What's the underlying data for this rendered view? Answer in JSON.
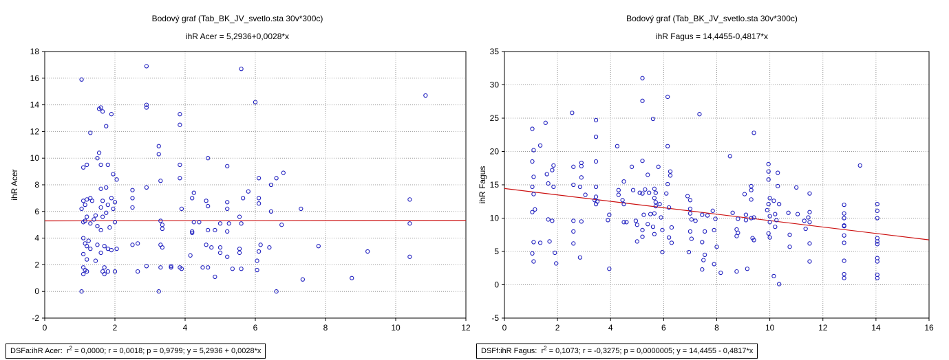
{
  "chart_data": [
    {
      "type": "scatter",
      "title": "Bodový graf (Tab_BK_JV_svetlo.sta 30v*300c)",
      "subtitle": "ihR Acer = 5,2936+0,0028*x",
      "xlabel": "",
      "ylabel": "ihR Acer",
      "xlim": [
        0,
        12
      ],
      "ylim": [
        -2,
        18
      ],
      "xticks": [
        "0",
        "2",
        "4",
        "6",
        "8",
        "10",
        "12"
      ],
      "yticks": [
        "-2",
        "0",
        "2",
        "4",
        "6",
        "8",
        "10",
        "12",
        "14",
        "16",
        "18"
      ],
      "grid": true,
      "regression": {
        "intercept": 5.2936,
        "slope": 0.0028
      },
      "stats": {
        "label": "DSFa:ihR Acer:",
        "r2_label": "r",
        "r2_value": " = 0,0000;  r = 0,0018;  p = 0,9799;  y = 5,2936 + 0,0028*x"
      },
      "points": [
        [
          1.05,
          15.9
        ],
        [
          1.1,
          9.3
        ],
        [
          1.2,
          9.5
        ],
        [
          1.1,
          6.8
        ],
        [
          1.15,
          6.5
        ],
        [
          1.2,
          6.9
        ],
        [
          1.3,
          7.0
        ],
        [
          1.05,
          6.2
        ],
        [
          1.1,
          5.2
        ],
        [
          1.15,
          5.3
        ],
        [
          1.2,
          5.6
        ],
        [
          1.3,
          5.1
        ],
        [
          1.1,
          4.0
        ],
        [
          1.15,
          3.6
        ],
        [
          1.2,
          3.4
        ],
        [
          1.25,
          3.8
        ],
        [
          1.3,
          3.2
        ],
        [
          1.1,
          2.8
        ],
        [
          1.2,
          2.4
        ],
        [
          1.1,
          1.8
        ],
        [
          1.15,
          1.6
        ],
        [
          1.2,
          1.5
        ],
        [
          1.1,
          1.3
        ],
        [
          1.05,
          0.0
        ],
        [
          1.3,
          11.9
        ],
        [
          1.35,
          6.8
        ],
        [
          1.4,
          5.4
        ],
        [
          1.45,
          5.7
        ],
        [
          1.5,
          4.9
        ],
        [
          1.5,
          3.5
        ],
        [
          1.45,
          2.3
        ],
        [
          1.5,
          10.0
        ],
        [
          1.55,
          10.4
        ],
        [
          1.55,
          13.7
        ],
        [
          1.6,
          13.8
        ],
        [
          1.65,
          13.5
        ],
        [
          1.6,
          9.5
        ],
        [
          1.6,
          7.7
        ],
        [
          1.65,
          6.8
        ],
        [
          1.6,
          6.3
        ],
        [
          1.65,
          5.6
        ],
        [
          1.6,
          4.6
        ],
        [
          1.7,
          3.4
        ],
        [
          1.6,
          2.9
        ],
        [
          1.7,
          1.8
        ],
        [
          1.65,
          1.5
        ],
        [
          1.7,
          1.3
        ],
        [
          1.75,
          12.4
        ],
        [
          1.8,
          9.5
        ],
        [
          1.75,
          7.8
        ],
        [
          1.8,
          6.5
        ],
        [
          1.75,
          5.9
        ],
        [
          1.85,
          4.8
        ],
        [
          1.8,
          3.2
        ],
        [
          1.8,
          1.5
        ],
        [
          1.9,
          13.3
        ],
        [
          1.95,
          8.8
        ],
        [
          1.9,
          7.0
        ],
        [
          2.0,
          6.7
        ],
        [
          1.95,
          6.2
        ],
        [
          2.0,
          5.2
        ],
        [
          1.9,
          3.1
        ],
        [
          2.0,
          1.5
        ],
        [
          2.05,
          8.4
        ],
        [
          2.05,
          3.2
        ],
        [
          2.5,
          7.6
        ],
        [
          2.5,
          7.0
        ],
        [
          2.5,
          6.3
        ],
        [
          2.5,
          3.5
        ],
        [
          2.65,
          3.6
        ],
        [
          2.65,
          1.5
        ],
        [
          2.9,
          16.9
        ],
        [
          2.9,
          14.0
        ],
        [
          2.9,
          13.8
        ],
        [
          2.9,
          7.8
        ],
        [
          2.9,
          1.9
        ],
        [
          3.25,
          10.9
        ],
        [
          3.25,
          10.3
        ],
        [
          3.3,
          8.3
        ],
        [
          3.3,
          5.3
        ],
        [
          3.35,
          5.0
        ],
        [
          3.35,
          4.7
        ],
        [
          3.3,
          3.5
        ],
        [
          3.35,
          3.3
        ],
        [
          3.3,
          1.8
        ],
        [
          3.25,
          0.0
        ],
        [
          3.6,
          1.8
        ],
        [
          3.6,
          1.9
        ],
        [
          3.85,
          13.3
        ],
        [
          3.85,
          12.5
        ],
        [
          3.85,
          9.5
        ],
        [
          3.85,
          8.5
        ],
        [
          3.9,
          6.2
        ],
        [
          3.85,
          1.8
        ],
        [
          3.9,
          1.7
        ],
        [
          4.25,
          7.4
        ],
        [
          4.2,
          7.0
        ],
        [
          4.25,
          5.2
        ],
        [
          4.2,
          4.5
        ],
        [
          4.2,
          4.4
        ],
        [
          4.15,
          2.7
        ],
        [
          4.4,
          5.2
        ],
        [
          4.5,
          1.8
        ],
        [
          4.65,
          10.0
        ],
        [
          4.6,
          6.8
        ],
        [
          4.65,
          6.4
        ],
        [
          4.65,
          4.6
        ],
        [
          4.6,
          3.5
        ],
        [
          4.65,
          1.8
        ],
        [
          4.75,
          3.3
        ],
        [
          4.85,
          4.6
        ],
        [
          4.85,
          1.1
        ],
        [
          5.0,
          5.1
        ],
        [
          5.0,
          3.3
        ],
        [
          5.0,
          2.9
        ],
        [
          5.2,
          9.4
        ],
        [
          5.2,
          6.7
        ],
        [
          5.2,
          6.2
        ],
        [
          5.25,
          5.1
        ],
        [
          5.2,
          4.5
        ],
        [
          5.2,
          2.6
        ],
        [
          5.35,
          1.7
        ],
        [
          5.6,
          16.7
        ],
        [
          5.55,
          5.6
        ],
        [
          5.6,
          5.1
        ],
        [
          5.55,
          3.2
        ],
        [
          5.55,
          2.9
        ],
        [
          5.6,
          1.7
        ],
        [
          5.8,
          7.5
        ],
        [
          5.65,
          7.0
        ],
        [
          6.0,
          14.2
        ],
        [
          6.1,
          8.5
        ],
        [
          6.1,
          7.0
        ],
        [
          6.1,
          6.6
        ],
        [
          6.1,
          3.0
        ],
        [
          6.05,
          2.3
        ],
        [
          6.05,
          1.6
        ],
        [
          6.15,
          3.5
        ],
        [
          6.45,
          8.0
        ],
        [
          6.45,
          6.0
        ],
        [
          6.4,
          3.3
        ],
        [
          6.6,
          8.5
        ],
        [
          6.8,
          8.9
        ],
        [
          6.75,
          5.0
        ],
        [
          6.6,
          0.0
        ],
        [
          7.3,
          6.2
        ],
        [
          7.35,
          0.9
        ],
        [
          7.8,
          3.4
        ],
        [
          8.75,
          1.0
        ],
        [
          9.2,
          3.0
        ],
        [
          10.4,
          6.9
        ],
        [
          10.4,
          5.1
        ],
        [
          10.4,
          2.6
        ],
        [
          10.85,
          14.7
        ]
      ]
    },
    {
      "type": "scatter",
      "title": "Bodový graf (Tab_BK_JV_svetlo.sta 30v*300c)",
      "subtitle": "ihR Fagus = 14,4455-0,4817*x",
      "xlabel": "",
      "ylabel": "ihR Fagus",
      "xlim": [
        0,
        16
      ],
      "ylim": [
        -5,
        35
      ],
      "xticks": [
        "0",
        "2",
        "4",
        "6",
        "8",
        "10",
        "12",
        "14",
        "16"
      ],
      "yticks": [
        "-5",
        "0",
        "5",
        "10",
        "15",
        "20",
        "25",
        "30",
        "35"
      ],
      "grid": true,
      "regression": {
        "intercept": 14.4455,
        "slope": -0.4817
      },
      "stats": {
        "label": "DSFf:ihR Fagus:",
        "r2_label": "r",
        "r2_value": " = 0,1073;  r = -0,3275;  p = 0,0000005;  y = 14,4455 - 0,4817*x"
      },
      "points": [
        [
          1.05,
          23.4
        ],
        [
          1.1,
          20.2
        ],
        [
          1.05,
          18.5
        ],
        [
          1.1,
          16.2
        ],
        [
          1.05,
          14.7
        ],
        [
          1.1,
          13.6
        ],
        [
          1.15,
          11.3
        ],
        [
          1.05,
          10.9
        ],
        [
          1.1,
          6.4
        ],
        [
          1.05,
          4.7
        ],
        [
          1.1,
          3.5
        ],
        [
          1.35,
          20.9
        ],
        [
          1.35,
          6.3
        ],
        [
          1.55,
          24.3
        ],
        [
          1.6,
          16.6
        ],
        [
          1.65,
          15.2
        ],
        [
          1.65,
          9.8
        ],
        [
          1.7,
          6.5
        ],
        [
          1.85,
          17.9
        ],
        [
          1.8,
          17.2
        ],
        [
          1.85,
          14.7
        ],
        [
          1.8,
          9.6
        ],
        [
          1.9,
          4.8
        ],
        [
          1.95,
          3.2
        ],
        [
          2.55,
          25.8
        ],
        [
          2.6,
          17.7
        ],
        [
          2.6,
          15.0
        ],
        [
          2.6,
          9.6
        ],
        [
          2.6,
          8.0
        ],
        [
          2.6,
          6.2
        ],
        [
          2.9,
          18.3
        ],
        [
          2.9,
          17.8
        ],
        [
          2.9,
          16.1
        ],
        [
          2.85,
          14.7
        ],
        [
          2.9,
          9.5
        ],
        [
          2.85,
          4.1
        ],
        [
          3.05,
          13.5
        ],
        [
          3.45,
          24.7
        ],
        [
          3.45,
          22.2
        ],
        [
          3.45,
          18.5
        ],
        [
          3.45,
          14.7
        ],
        [
          3.45,
          13.2
        ],
        [
          3.4,
          12.7
        ],
        [
          3.5,
          12.5
        ],
        [
          3.45,
          12.1
        ],
        [
          3.95,
          10.5
        ],
        [
          3.9,
          9.7
        ],
        [
          3.95,
          2.4
        ],
        [
          4.25,
          20.8
        ],
        [
          4.3,
          14.2
        ],
        [
          4.3,
          13.5
        ],
        [
          4.5,
          15.5
        ],
        [
          4.45,
          12.7
        ],
        [
          4.5,
          12.1
        ],
        [
          4.6,
          9.4
        ],
        [
          4.5,
          9.4
        ],
        [
          4.8,
          17.7
        ],
        [
          4.85,
          14.2
        ],
        [
          4.95,
          9.6
        ],
        [
          5.0,
          9.0
        ],
        [
          5.0,
          6.5
        ],
        [
          5.1,
          13.8
        ],
        [
          5.2,
          31.0
        ],
        [
          5.2,
          27.6
        ],
        [
          5.2,
          18.6
        ],
        [
          5.3,
          14.3
        ],
        [
          5.2,
          13.7
        ],
        [
          5.25,
          10.5
        ],
        [
          5.2,
          8.2
        ],
        [
          5.2,
          7.2
        ],
        [
          5.4,
          16.5
        ],
        [
          5.45,
          13.8
        ],
        [
          5.5,
          10.6
        ],
        [
          5.4,
          9.1
        ],
        [
          5.6,
          24.9
        ],
        [
          5.65,
          14.4
        ],
        [
          5.7,
          13.8
        ],
        [
          5.65,
          13.0
        ],
        [
          5.7,
          12.4
        ],
        [
          5.7,
          11.8
        ],
        [
          5.65,
          10.7
        ],
        [
          5.6,
          8.7
        ],
        [
          5.65,
          7.6
        ],
        [
          5.8,
          17.7
        ],
        [
          5.85,
          12.1
        ],
        [
          5.9,
          10.1
        ],
        [
          5.95,
          8.2
        ],
        [
          5.95,
          4.9
        ],
        [
          6.15,
          28.2
        ],
        [
          6.15,
          20.8
        ],
        [
          6.25,
          17.0
        ],
        [
          6.25,
          16.4
        ],
        [
          6.15,
          15.1
        ],
        [
          6.1,
          13.7
        ],
        [
          6.2,
          11.6
        ],
        [
          6.3,
          8.6
        ],
        [
          6.2,
          7.1
        ],
        [
          6.3,
          6.3
        ],
        [
          6.9,
          13.3
        ],
        [
          7.0,
          12.7
        ],
        [
          7.0,
          11.4
        ],
        [
          7.0,
          10.7
        ],
        [
          7.05,
          9.8
        ],
        [
          7.0,
          8.0
        ],
        [
          7.05,
          6.9
        ],
        [
          6.95,
          4.9
        ],
        [
          7.2,
          9.6
        ],
        [
          7.35,
          25.6
        ],
        [
          7.45,
          10.5
        ],
        [
          7.55,
          8.0
        ],
        [
          7.45,
          6.4
        ],
        [
          7.55,
          4.5
        ],
        [
          7.5,
          3.7
        ],
        [
          7.45,
          2.3
        ],
        [
          7.65,
          10.4
        ],
        [
          7.85,
          11.1
        ],
        [
          7.95,
          9.9
        ],
        [
          7.9,
          8.2
        ],
        [
          8.0,
          5.7
        ],
        [
          7.9,
          3.1
        ],
        [
          8.15,
          1.8
        ],
        [
          8.5,
          19.3
        ],
        [
          8.6,
          10.8
        ],
        [
          8.8,
          9.9
        ],
        [
          8.75,
          8.3
        ],
        [
          8.8,
          7.8
        ],
        [
          8.75,
          7.3
        ],
        [
          8.75,
          2.0
        ],
        [
          9.05,
          13.6
        ],
        [
          9.1,
          10.5
        ],
        [
          9.1,
          9.7
        ],
        [
          9.15,
          2.4
        ],
        [
          9.3,
          14.8
        ],
        [
          9.3,
          14.2
        ],
        [
          9.3,
          12.8
        ],
        [
          9.3,
          10.0
        ],
        [
          9.4,
          22.8
        ],
        [
          9.4,
          10.1
        ],
        [
          9.35,
          7.0
        ],
        [
          9.4,
          6.7
        ],
        [
          9.95,
          18.1
        ],
        [
          9.95,
          17.0
        ],
        [
          9.95,
          15.8
        ],
        [
          10.0,
          13.0
        ],
        [
          9.95,
          12.1
        ],
        [
          9.9,
          11.2
        ],
        [
          10.0,
          10.3
        ],
        [
          10.0,
          9.4
        ],
        [
          9.95,
          7.7
        ],
        [
          10.0,
          7.1
        ],
        [
          10.15,
          12.6
        ],
        [
          10.2,
          10.6
        ],
        [
          10.25,
          9.7
        ],
        [
          10.2,
          8.7
        ],
        [
          10.3,
          16.8
        ],
        [
          10.3,
          14.8
        ],
        [
          10.35,
          12.1
        ],
        [
          10.15,
          1.3
        ],
        [
          10.35,
          0.1
        ],
        [
          10.7,
          10.8
        ],
        [
          10.75,
          7.5
        ],
        [
          10.75,
          5.7
        ],
        [
          11.0,
          14.6
        ],
        [
          11.05,
          10.6
        ],
        [
          11.3,
          9.6
        ],
        [
          11.35,
          8.4
        ],
        [
          11.5,
          13.7
        ],
        [
          11.5,
          10.9
        ],
        [
          11.45,
          10.1
        ],
        [
          11.5,
          9.4
        ],
        [
          11.5,
          6.2
        ],
        [
          11.5,
          3.5
        ],
        [
          12.8,
          12.0
        ],
        [
          12.8,
          10.7
        ],
        [
          12.8,
          10.0
        ],
        [
          12.8,
          8.9
        ],
        [
          12.8,
          8.8
        ],
        [
          12.8,
          7.4
        ],
        [
          12.8,
          6.3
        ],
        [
          12.8,
          3.6
        ],
        [
          12.8,
          1.6
        ],
        [
          12.8,
          1.0
        ],
        [
          13.4,
          17.9
        ],
        [
          14.05,
          12.1
        ],
        [
          14.05,
          11.1
        ],
        [
          14.05,
          10.0
        ],
        [
          14.05,
          7.0
        ],
        [
          14.05,
          6.5
        ],
        [
          14.05,
          6.1
        ],
        [
          14.05,
          4.0
        ],
        [
          14.05,
          3.5
        ],
        [
          14.05,
          1.5
        ],
        [
          14.05,
          1.0
        ]
      ]
    }
  ],
  "colors": {
    "marker": "#1f1fbf",
    "regression": "#cc1111",
    "grid": "#999999",
    "frame": "#000000"
  }
}
